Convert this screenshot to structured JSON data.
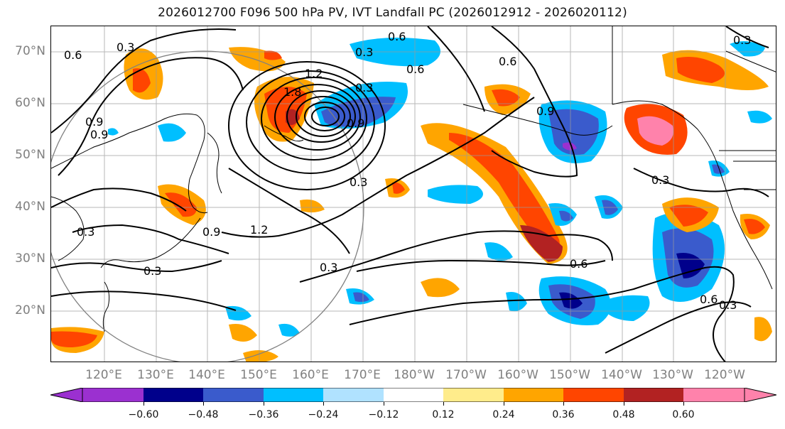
{
  "title": "2026012700 F096 500 hPa PV, IVT Landfall PC (2026012912 - 2026020112)",
  "lat_labels": [
    "70°N",
    "60°N",
    "50°N",
    "40°N",
    "30°N",
    "20°N"
  ],
  "lon_labels": [
    "120°E",
    "130°E",
    "140°E",
    "150°E",
    "160°E",
    "170°E",
    "180°W",
    "170°W",
    "160°W",
    "150°W",
    "140°W",
    "130°W",
    "120°W"
  ],
  "colorbar": {
    "ticks": [
      "−0.60",
      "−0.48",
      "−0.36",
      "−0.24",
      "−0.12",
      "0.12",
      "0.24",
      "0.36",
      "0.48",
      "0.60"
    ],
    "colors": [
      "#9b30d0",
      "#00008b",
      "#3a5bcc",
      "#00bfff",
      "#b0e2ff",
      "#ffffff",
      "#ffec8b",
      "#ffa500",
      "#ff4500",
      "#b22222",
      "#ff82ab"
    ]
  },
  "contour_labels": [
    "0.6",
    "0.3",
    "0.6",
    "0.3",
    "0.6",
    "1.2",
    "1.8",
    "0.9",
    "0.9",
    "0.3",
    "0.6",
    "0.9",
    "0.3",
    "0.3",
    "0.3",
    "0.9",
    "1.2",
    "0.3",
    "0.3",
    "0.6",
    "0.3",
    "0.6",
    "0.3",
    "0.9"
  ]
}
